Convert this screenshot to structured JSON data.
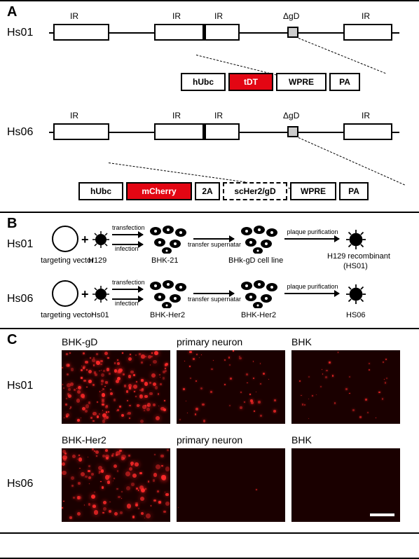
{
  "panelA": {
    "label": "A",
    "rows": [
      "Hs01",
      "Hs06"
    ],
    "ir_label": "IR",
    "deltaGD_label": "ΔgD",
    "cassette_hs01": [
      "hUbc",
      "tDT",
      "WPRE",
      "PA"
    ],
    "cassette_hs06": [
      "hUbc",
      "mCherry",
      "2A",
      "scHer2/gD",
      "WPRE",
      "PA"
    ],
    "colors": {
      "red": "#e30613",
      "gray": "#cccccc"
    }
  },
  "panelB": {
    "label": "B",
    "rows": [
      "Hs01",
      "Hs06"
    ],
    "node_labels": {
      "targeting": "targeting vector",
      "h129": "H129",
      "hs01_in": "Hs01",
      "bhk21": "BHK-21",
      "bhkher2": "BHK-Her2",
      "bhkgd": "BHk-gD cell line",
      "bhkher2_2": "BHK-Her2",
      "recomb": "H129 recombinant",
      "recomb2": "(HS01)",
      "hs06_out": "HS06"
    },
    "arrow_labels": {
      "transfection": "transfection",
      "infection": "infection",
      "transfer": "transfer supernatar",
      "plaque": "plaque purification"
    }
  },
  "panelC": {
    "label": "C",
    "rows": [
      "Hs01",
      "Hs06"
    ],
    "col_titles": [
      "BHK-gD",
      "primary neuron",
      "BHK"
    ],
    "col_titles_row2": [
      "BHK-Her2",
      "primary neuron",
      "BHK"
    ],
    "micrographs": [
      {
        "density": 180,
        "size_range": [
          1,
          6
        ],
        "brightness": 1.0
      },
      {
        "density": 50,
        "size_range": [
          1,
          4
        ],
        "brightness": 0.9
      },
      {
        "density": 35,
        "size_range": [
          1,
          3
        ],
        "brightness": 0.8
      },
      {
        "density": 120,
        "size_range": [
          1,
          7
        ],
        "brightness": 1.0
      },
      {
        "density": 2,
        "size_range": [
          1,
          2
        ],
        "brightness": 0.5
      },
      {
        "density": 0,
        "size_range": [
          1,
          2
        ],
        "brightness": 0.5
      }
    ],
    "background": "#1a0000",
    "dot_color": "#ff2a2a"
  }
}
